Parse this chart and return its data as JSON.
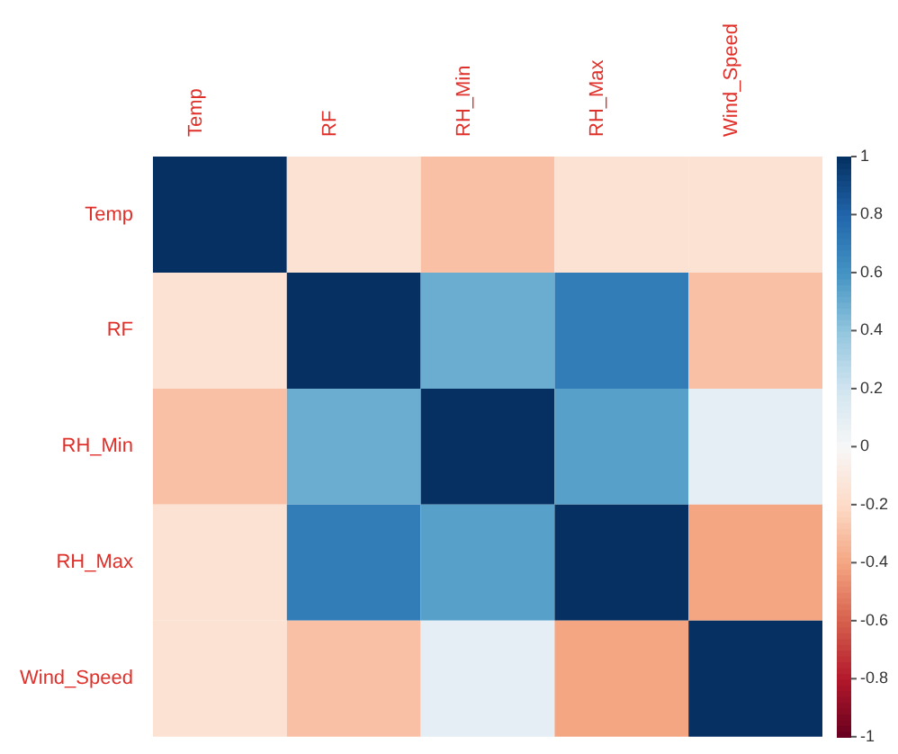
{
  "chart_data": {
    "type": "heatmap",
    "categories": [
      "Temp",
      "RF",
      "RH_Min",
      "RH_Max",
      "Wind_Speed"
    ],
    "y_categories": [
      "Temp",
      "RF",
      "RH_Min",
      "RH_Max",
      "Wind_Speed"
    ],
    "cells": [
      [
        1,
        -0.15,
        -0.3,
        -0.15,
        -0.15
      ],
      [
        -0.15,
        1,
        0.5,
        0.7,
        -0.3
      ],
      [
        -0.3,
        0.5,
        1,
        0.55,
        0.1
      ],
      [
        -0.15,
        0.7,
        0.55,
        1,
        -0.4
      ],
      [
        -0.15,
        -0.3,
        0.1,
        -0.4,
        1
      ]
    ],
    "clim": [
      -1,
      1
    ],
    "cticks": [
      -1,
      -0.8,
      -0.6,
      -0.4,
      -0.2,
      0,
      0.2,
      0.4,
      0.6,
      0.8,
      1
    ]
  }
}
